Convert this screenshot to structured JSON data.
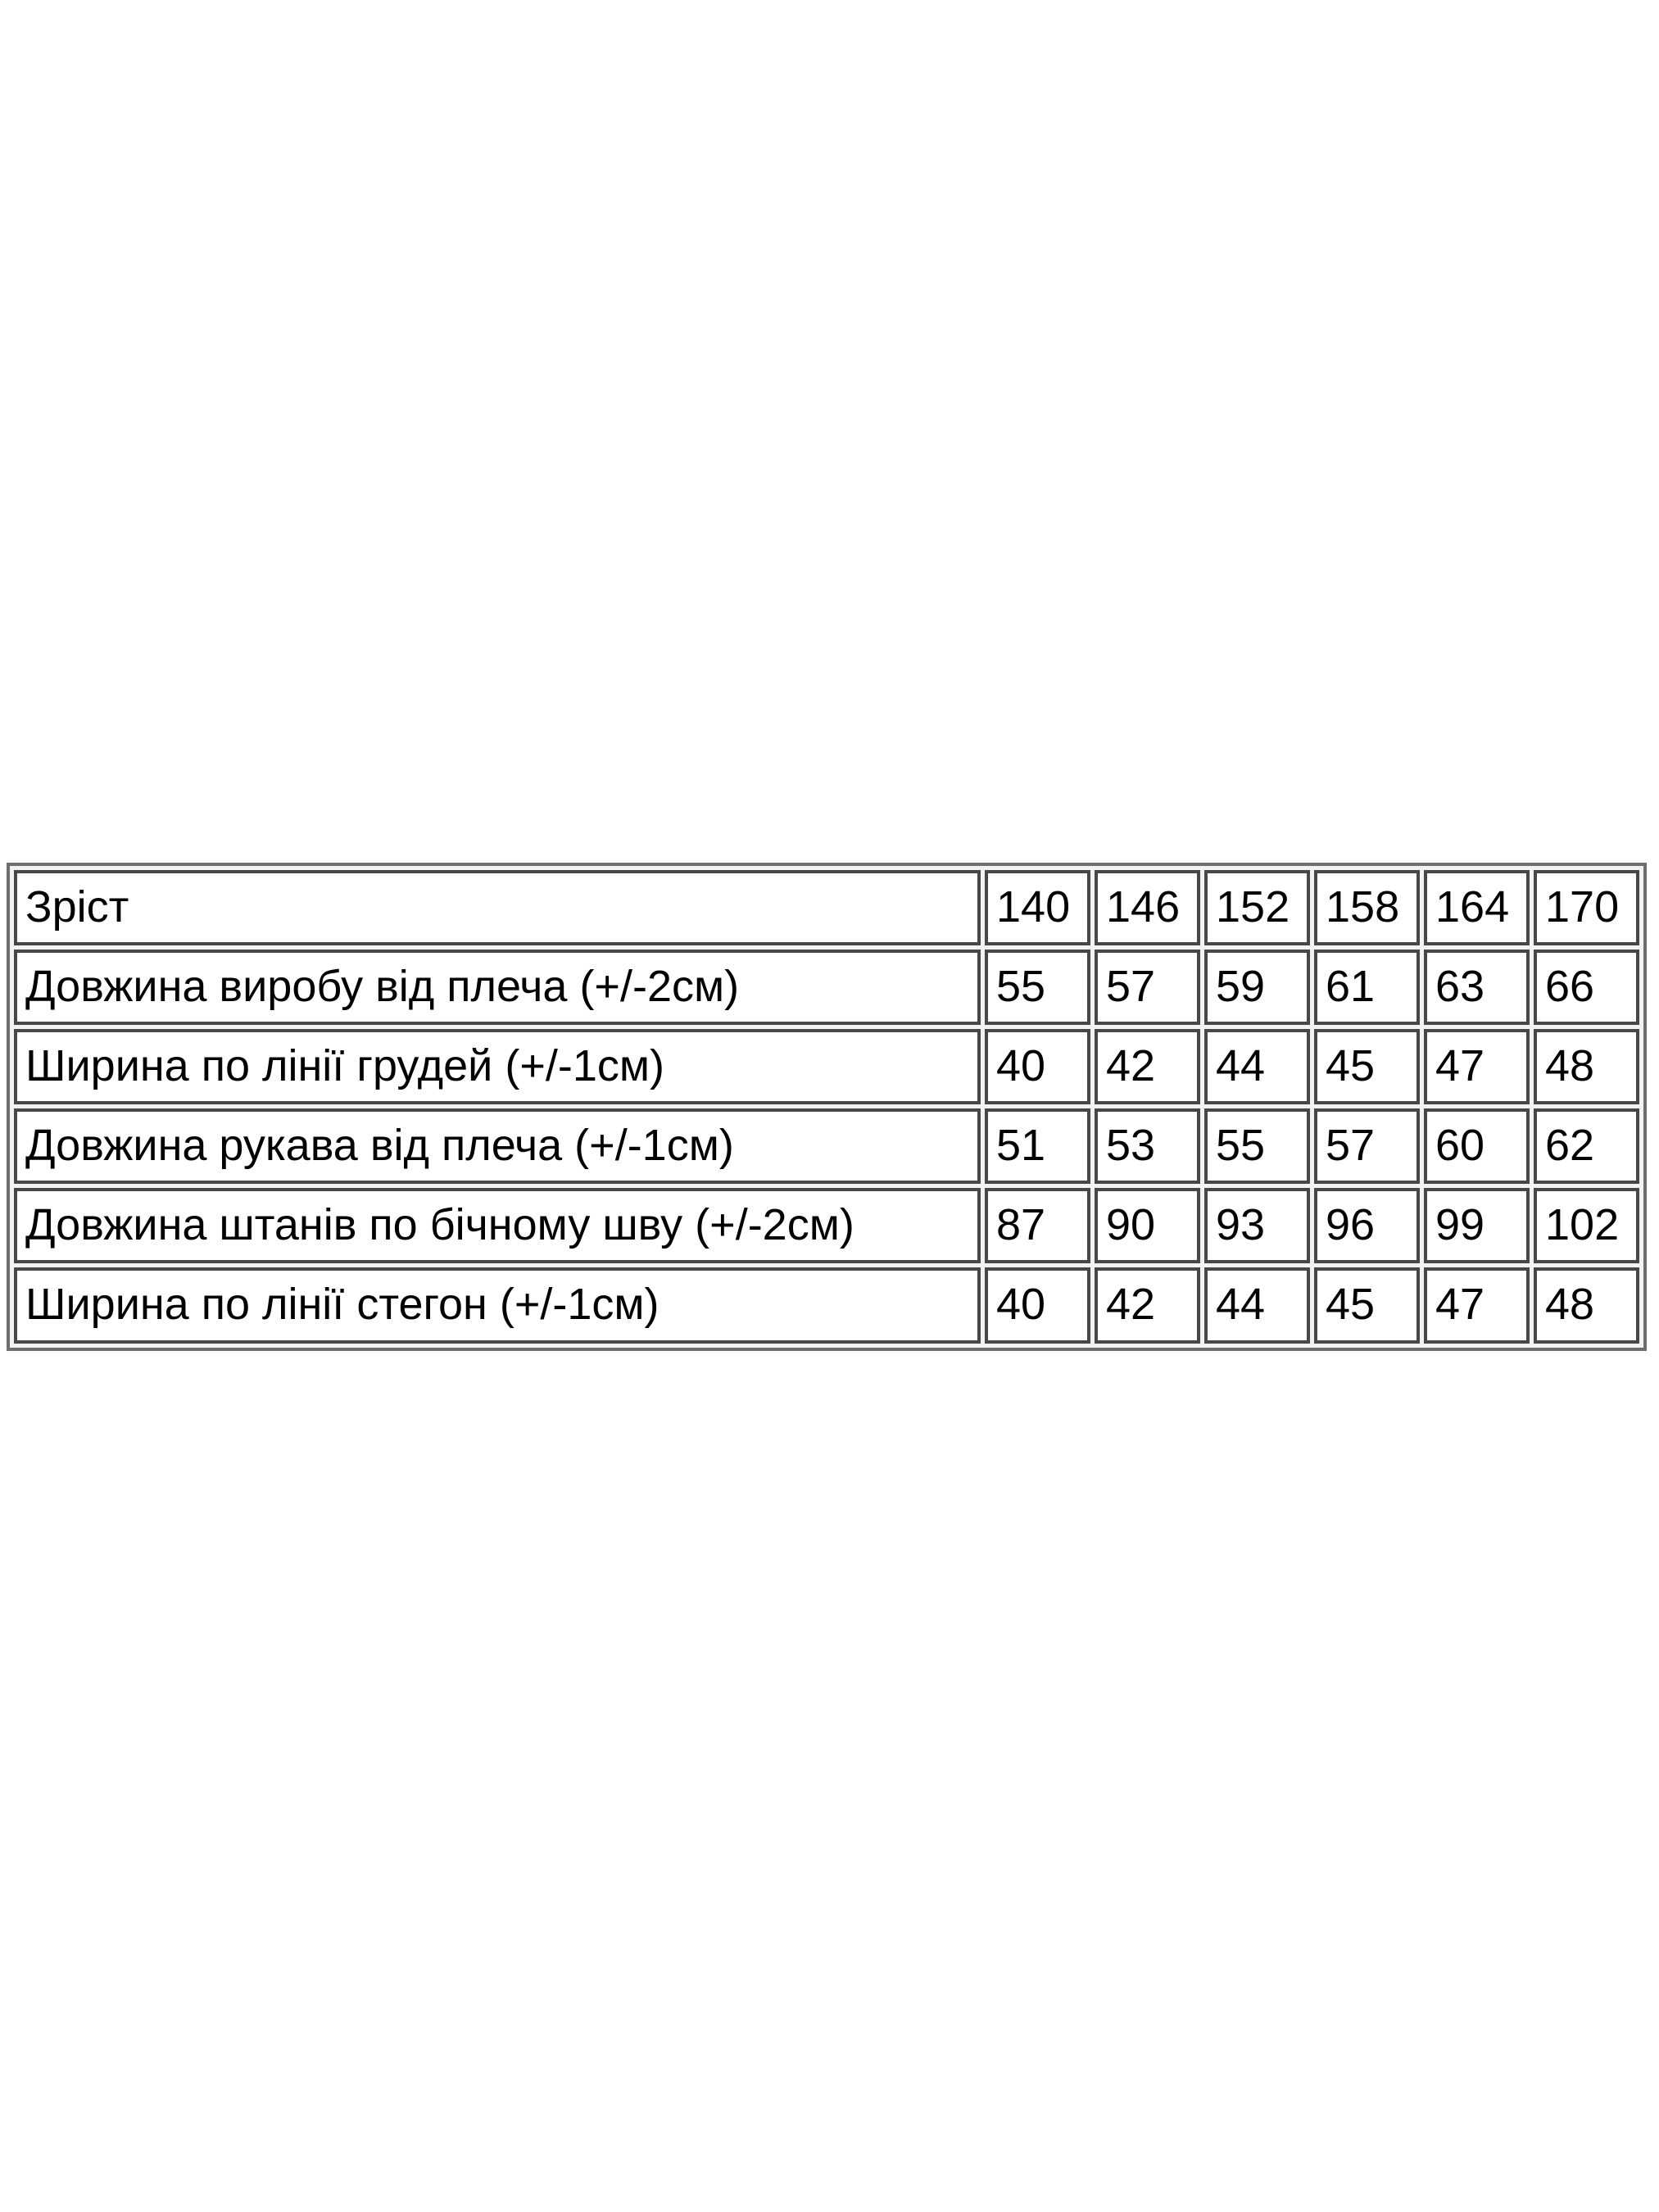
{
  "page": {
    "background_color": "#ffffff",
    "text_color": "#000000",
    "table_border_outer_color": "#6e6e6e",
    "table_border_cell_color": "#474747"
  },
  "table": {
    "header_row": {
      "label": "Зріст",
      "values": [
        "140",
        "146",
        "152",
        "158",
        "164",
        "170"
      ]
    },
    "rows": [
      {
        "label": "Довжина виробу від плеча (+/-2см)",
        "values": [
          "55",
          "57",
          "59",
          "61",
          "63",
          "66"
        ]
      },
      {
        "label": "Ширина по лінії грудей (+/-1см)",
        "values": [
          "40",
          "42",
          "44",
          "45",
          "47",
          "48"
        ]
      },
      {
        "label": "Довжина рукава від плеча (+/-1см)",
        "values": [
          "51",
          "53",
          "55",
          "57",
          "60",
          "62"
        ]
      },
      {
        "label": "Довжина штанів по бічному шву (+/-2см)",
        "values": [
          "87",
          "90",
          "93",
          "96",
          "99",
          "102"
        ]
      },
      {
        "label": "Ширина по лінії стегон (+/-1см)",
        "values": [
          "40",
          "42",
          "44",
          "45",
          "47",
          "48"
        ]
      }
    ]
  },
  "chart_data": {
    "type": "table",
    "title": "",
    "columns": [
      "Зріст",
      "140",
      "146",
      "152",
      "158",
      "164",
      "170"
    ],
    "rows": [
      [
        "Довжина виробу від плеча (+/-2см)",
        55,
        57,
        59,
        61,
        63,
        66
      ],
      [
        "Ширина по лінії грудей (+/-1см)",
        40,
        42,
        44,
        45,
        47,
        48
      ],
      [
        "Довжина рукава від плеча (+/-1см)",
        51,
        53,
        55,
        57,
        60,
        62
      ],
      [
        "Довжина штанів по бічному шву (+/-2см)",
        87,
        90,
        93,
        96,
        99,
        102
      ],
      [
        "Ширина по лінії стегон (+/-1см)",
        40,
        42,
        44,
        45,
        47,
        48
      ]
    ]
  }
}
